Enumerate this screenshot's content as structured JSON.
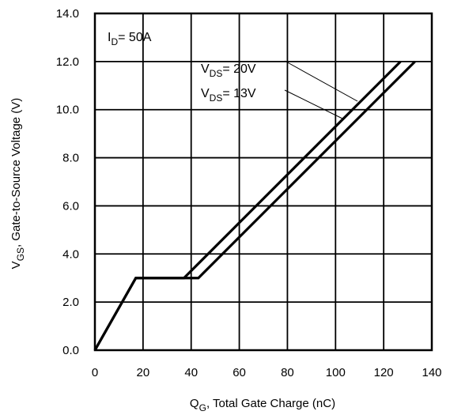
{
  "chart_data": {
    "type": "line",
    "title": "",
    "xlabel": {
      "main": "Q",
      "sub": "G",
      "rest": ",  Total Gate Charge (nC)"
    },
    "ylabel": {
      "main": "V",
      "sub": "GS",
      "rest": ", Gate-to-Source Voltage (V)"
    },
    "xlim": [
      0,
      140
    ],
    "ylim": [
      0,
      14
    ],
    "x_ticks": [
      0,
      20,
      40,
      60,
      80,
      100,
      120,
      140
    ],
    "y_ticks": [
      0,
      2,
      4,
      6,
      8,
      10,
      12,
      14
    ],
    "x_tick_labels": [
      "0",
      "20",
      "40",
      "60",
      "80",
      "100",
      "120",
      "140"
    ],
    "y_tick_labels": [
      "0.0",
      "2.0",
      "4.0",
      "6.0",
      "8.0",
      "10.0",
      "12.0",
      "14.0"
    ],
    "grid": true,
    "series": [
      {
        "name": {
          "main": "V",
          "sub": "DS",
          "rest": "= 20V"
        },
        "x": [
          0,
          17,
          43,
          133
        ],
        "y": [
          0,
          3,
          3,
          12
        ]
      },
      {
        "name": {
          "main": "V",
          "sub": "DS",
          "rest": "= 13V"
        },
        "x": [
          0,
          17,
          37,
          127
        ],
        "y": [
          0,
          3,
          3,
          12
        ]
      }
    ],
    "annotation": {
      "main": "I",
      "sub": "D",
      "rest": "= 50A"
    }
  }
}
